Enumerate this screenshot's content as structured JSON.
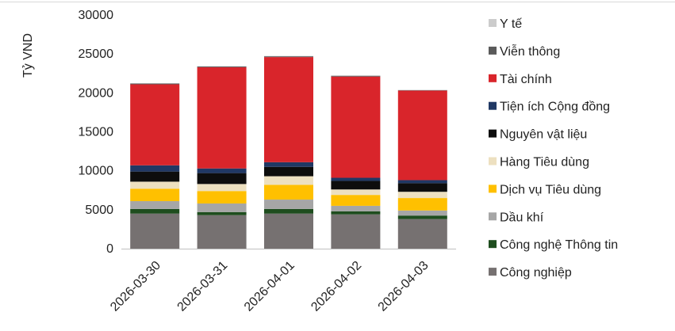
{
  "chart_data": {
    "type": "bar",
    "stacked": true,
    "ylabel": "Tỷ VND",
    "xlabel": "",
    "ylim": [
      0,
      30000
    ],
    "yticks": [
      0,
      5000,
      10000,
      15000,
      20000,
      25000,
      30000
    ],
    "grid": false,
    "legend_position": "right",
    "categories": [
      "2026-03-30",
      "2026-03-31",
      "2026-04-01",
      "2026-04-02",
      "2026-04-03"
    ],
    "series": [
      {
        "name": "Công nghiệp",
        "color": "#767171",
        "values": [
          4500,
          4300,
          4500,
          4400,
          3800
        ]
      },
      {
        "name": "Công nghệ Thông tin",
        "color": "#1e4d1e",
        "values": [
          600,
          400,
          600,
          400,
          450
        ]
      },
      {
        "name": "Dầu khí",
        "color": "#a6a6a6",
        "values": [
          1000,
          1100,
          1200,
          700,
          650
        ]
      },
      {
        "name": "Dịch vụ Tiêu dùng",
        "color": "#ffc000",
        "values": [
          1600,
          1600,
          1900,
          1400,
          1600
        ]
      },
      {
        "name": "Hàng Tiêu dùng",
        "color": "#ede0c0",
        "values": [
          900,
          900,
          1100,
          700,
          800
        ]
      },
      {
        "name": "Nguyên vật liệu",
        "color": "#0d0d0d",
        "values": [
          1300,
          1400,
          1200,
          1100,
          1100
        ]
      },
      {
        "name": "Tiện ích Cộng đồng",
        "color": "#203864",
        "values": [
          800,
          600,
          600,
          400,
          400
        ]
      },
      {
        "name": "Tài chính",
        "color": "#d9252b",
        "values": [
          10400,
          13000,
          13500,
          13000,
          11500
        ]
      },
      {
        "name": "Viễn thông",
        "color": "#5a5a5a",
        "values": [
          100,
          100,
          100,
          100,
          50
        ]
      },
      {
        "name": "Y tế",
        "color": "#cccccc",
        "values": [
          50,
          50,
          50,
          50,
          50
        ]
      }
    ]
  }
}
